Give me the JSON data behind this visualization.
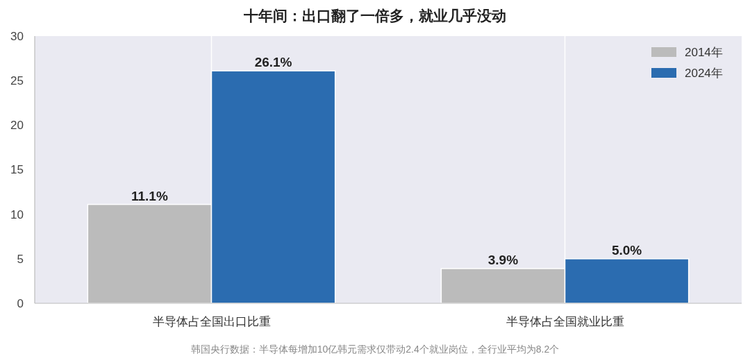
{
  "chart_data": {
    "type": "bar",
    "title": "十年间：出口翻了一倍多，就业几乎没动",
    "categories": [
      "半导体占全国出口比重",
      "半导体占全国就业比重"
    ],
    "series": [
      {
        "name": "2014年",
        "color": "#bbbbbb",
        "values": [
          11.1,
          3.9
        ],
        "value_labels": [
          "11.1%",
          "3.9%"
        ]
      },
      {
        "name": "2024年",
        "color": "#2b6cb0",
        "values": [
          26.1,
          5.0
        ],
        "value_labels": [
          "26.1%",
          "5.0%"
        ]
      }
    ],
    "ylim": [
      0,
      30
    ],
    "yticks": [
      0,
      5,
      10,
      15,
      20,
      25,
      30
    ],
    "grid": "x",
    "legend": "top right",
    "annotations": [
      "韩国央行数据：半导体每增加10亿韩元需求仅带动2.4个就业岗位，全行业平均为8.2个"
    ]
  }
}
